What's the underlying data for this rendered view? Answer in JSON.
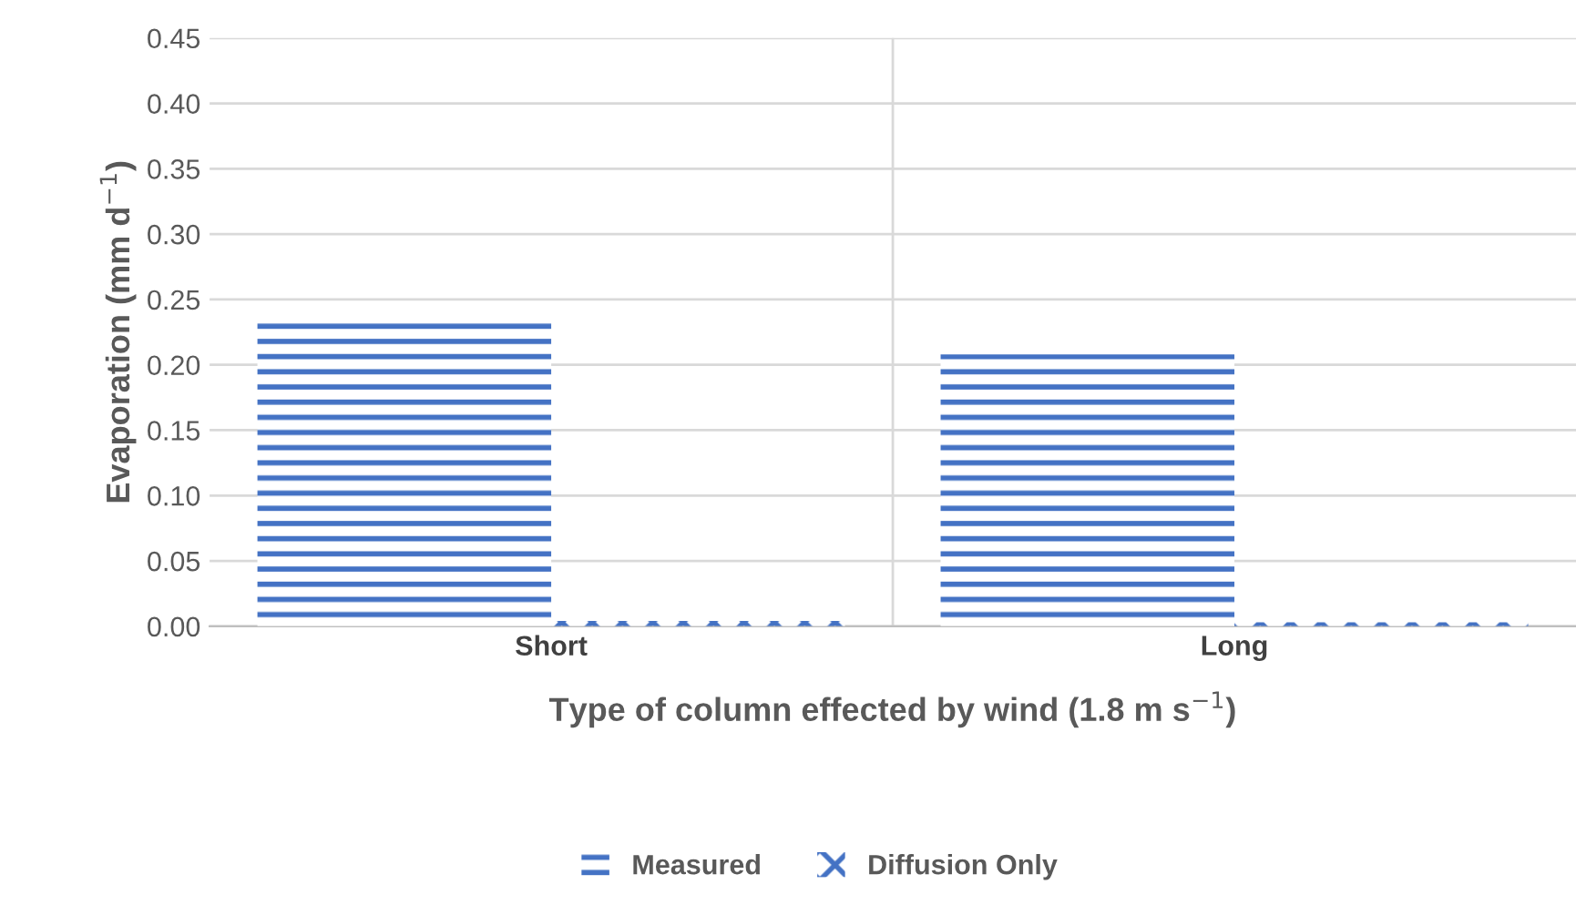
{
  "chart_data": {
    "type": "bar",
    "xlabel": "Type of column effected by wind (1.8 m s$^{−1}$)",
    "ylabel": "Evaporation (mm d$^{−1}$)",
    "categories": [
      "Short",
      "Long"
    ],
    "series": [
      {
        "name": "Measured",
        "color": "#4472c4",
        "values": [
          0.233,
          0.208
        ]
      },
      {
        "name": "Diffusion Only",
        "color": "#4472c4",
        "values": [
          0.004,
          0.003
        ]
      }
    ],
    "ylim": [
      0,
      0.45
    ],
    "yticks": [
      {
        "value": 0,
        "label": "0.00"
      },
      {
        "value": 0.05,
        "label": "0.05"
      },
      {
        "value": 0.1,
        "label": "0.10"
      },
      {
        "value": 0.15,
        "label": "0.15"
      },
      {
        "value": 0.2,
        "label": "0.20"
      },
      {
        "value": 0.25,
        "label": "0.25"
      },
      {
        "value": 0.3,
        "label": "0.30"
      },
      {
        "value": 0.35,
        "label": "0.35"
      },
      {
        "value": 0.4,
        "label": "0.40"
      },
      {
        "value": 0.45,
        "label": "0.45"
      }
    ],
    "grid": true,
    "legend": "bottom"
  }
}
